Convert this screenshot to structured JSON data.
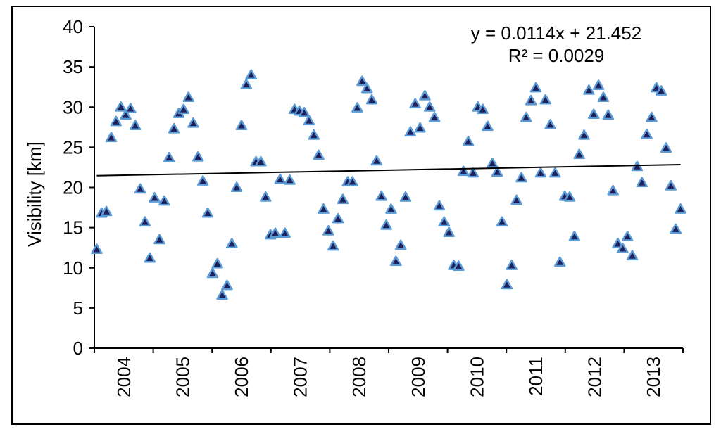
{
  "chart_data": {
    "type": "scatter",
    "title": "",
    "xlabel": "",
    "ylabel": "Visibility [km]",
    "ylim": [
      0,
      40
    ],
    "yticks": [
      0,
      5,
      10,
      15,
      20,
      25,
      30,
      35,
      40
    ],
    "xlim": [
      0,
      120
    ],
    "x_tick_labels": [
      "2004",
      "2005",
      "2006",
      "2007",
      "2008",
      "2009",
      "2010",
      "2011",
      "2012",
      "2013"
    ],
    "grid": false,
    "legend": false,
    "marker": "triangle",
    "marker_color": "#1f1f5a",
    "marker_edge_color": "#5b9bd5",
    "trendline": {
      "equation": "y = 0.0114x + 21.452",
      "r_squared": "R² = 0.0029",
      "slope": 0.0114,
      "intercept": 21.452,
      "color": "#000000"
    },
    "values": [
      12.3,
      16.8,
      17.0,
      26.2,
      28.2,
      30.0,
      29.0,
      29.8,
      27.7,
      19.8,
      15.7,
      11.2,
      18.7,
      13.5,
      18.3,
      23.7,
      27.3,
      29.2,
      29.7,
      31.2,
      28.0,
      23.8,
      20.8,
      16.8,
      9.3,
      10.5,
      6.6,
      7.8,
      13.0,
      20.0,
      27.7,
      32.8,
      34.0,
      23.2,
      23.2,
      18.8,
      14.1,
      14.3,
      21.0,
      14.3,
      20.9,
      29.7,
      29.5,
      29.3,
      28.3,
      26.5,
      24.0,
      17.3,
      14.6,
      12.7,
      16.1,
      18.5,
      20.7,
      20.7,
      29.9,
      33.2,
      32.3,
      30.9,
      23.3,
      18.9,
      15.3,
      17.3,
      10.8,
      12.8,
      18.8,
      26.9,
      30.4,
      27.4,
      31.4,
      30.0,
      28.7,
      17.7,
      15.7,
      14.4,
      10.3,
      10.2,
      22.0,
      25.7,
      21.8,
      30.0,
      29.7,
      27.6,
      23.0,
      21.9,
      15.7,
      7.9,
      10.3,
      18.4,
      21.2,
      28.7,
      30.8,
      32.4,
      21.8,
      30.9,
      27.8,
      21.8,
      10.7,
      18.9,
      18.8,
      13.9,
      24.1,
      26.5,
      32.1,
      29.1,
      32.7,
      31.2,
      29.0,
      19.6,
      13.0,
      12.4,
      13.9,
      11.5,
      22.6,
      20.6,
      26.6,
      28.7,
      32.4,
      32.0,
      24.9,
      20.2,
      14.8,
      17.3
    ]
  }
}
